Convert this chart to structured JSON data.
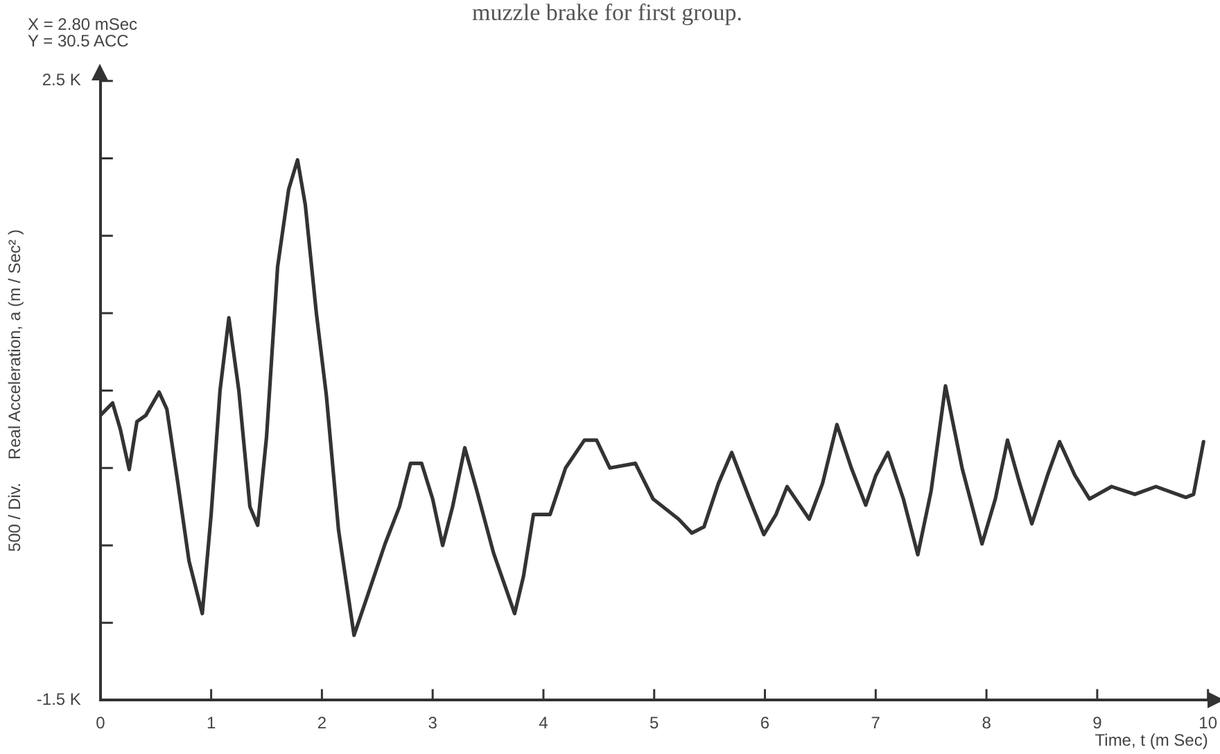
{
  "chart_data": {
    "type": "line",
    "title": "muzzle brake for first group.",
    "xlabel": "Time, t (m Sec)",
    "ylabel": "500 / Div.     Real Acceleration, a (m / Sec² )",
    "annotations": [
      "X = 2.80 mSec",
      "Y = 30.5 ACC"
    ],
    "x": [
      0,
      0.11,
      0.18,
      0.26,
      0.33,
      0.41,
      0.53,
      0.6,
      0.7,
      0.8,
      0.92,
      1.0,
      1.08,
      1.16,
      1.25,
      1.35,
      1.42,
      1.5,
      1.6,
      1.7,
      1.78,
      1.85,
      1.95,
      2.04,
      2.15,
      2.29,
      2.4,
      2.57,
      2.7,
      2.8,
      2.9,
      3.0,
      3.09,
      3.18,
      3.29,
      3.4,
      3.55,
      3.74,
      3.82,
      3.91,
      4.06,
      4.2,
      4.37,
      4.48,
      4.6,
      4.83,
      4.99,
      5.22,
      5.34,
      5.45,
      5.58,
      5.7,
      5.85,
      5.99,
      6.1,
      6.2,
      6.4,
      6.52,
      6.65,
      6.78,
      6.91,
      7.0,
      7.11,
      7.25,
      7.38,
      7.5,
      7.63,
      7.78,
      7.96,
      8.08,
      8.19,
      8.3,
      8.41,
      8.55,
      8.66,
      8.8,
      8.93,
      9.13,
      9.34,
      9.53,
      9.8,
      9.87,
      9.96
    ],
    "series": [
      {
        "color": "#333333",
        "values": [
          340,
          420,
          250,
          -10,
          300,
          340,
          490,
          380,
          -100,
          -600,
          -940,
          -300,
          500,
          970,
          500,
          -250,
          -370,
          200,
          1300,
          1800,
          1990,
          1700,
          1000,
          470,
          -400,
          -1080,
          -850,
          -490,
          -250,
          30,
          30,
          -200,
          -500,
          -250,
          130,
          -150,
          -550,
          -940,
          -700,
          -300,
          -300,
          0,
          180,
          180,
          0,
          30,
          -200,
          -330,
          -420,
          -380,
          -100,
          100,
          -180,
          -430,
          -300,
          -120,
          -330,
          -100,
          280,
          0,
          -240,
          -50,
          100,
          -200,
          -560,
          -150,
          530,
          0,
          -490,
          -200,
          180,
          -100,
          -360,
          -50,
          170,
          -50,
          -200,
          -120,
          -170,
          -120,
          -190,
          -170,
          170
        ]
      }
    ],
    "xlim": [
      0,
      10
    ],
    "xticks": [
      0,
      1,
      2,
      3,
      4,
      5,
      6,
      7,
      8,
      9,
      10
    ],
    "ylim": [
      -1500,
      2500
    ],
    "yticks": [
      {
        "value": -1500,
        "label": "-1.5 K"
      },
      {
        "value": -1000,
        "label": null
      },
      {
        "value": -500,
        "label": null
      },
      {
        "value": 0,
        "label": null
      },
      {
        "value": 500,
        "label": null
      },
      {
        "value": 1000,
        "label": null
      },
      {
        "value": 1500,
        "label": null
      },
      {
        "value": 2000,
        "label": null
      },
      {
        "value": 2500,
        "label": "2.5 K"
      }
    ]
  }
}
